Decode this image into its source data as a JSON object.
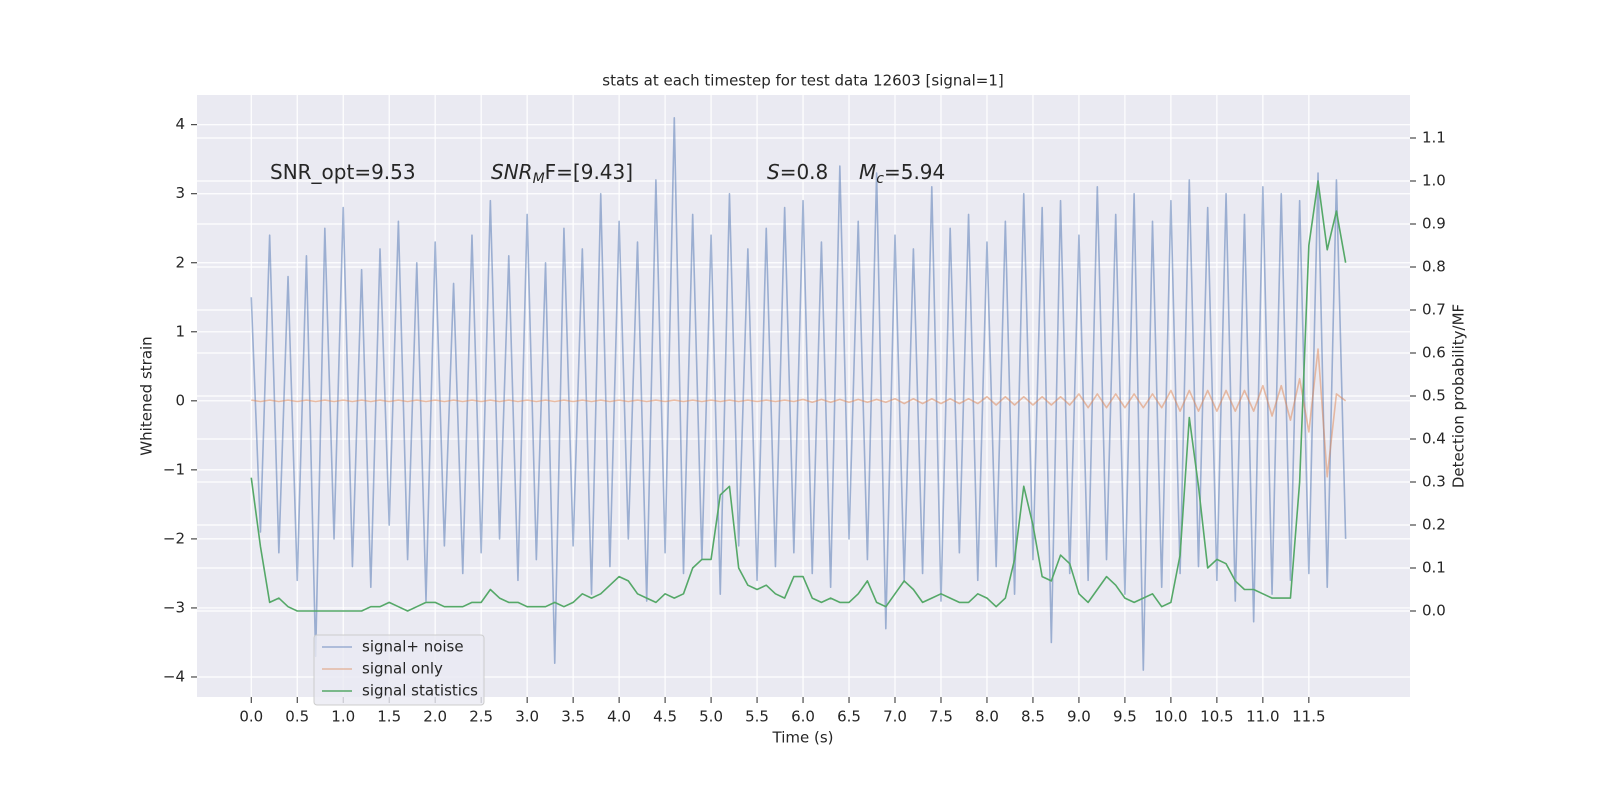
{
  "chart_data": {
    "type": "line",
    "title": "stats at each timestep for test data 12603 [signal=1]",
    "xlabel": "Time (s)",
    "ylabel": "Whitened strain",
    "y2label": "Detection probability/MF",
    "annotations": [
      {
        "text": "SNR_opt=9.53"
      },
      {
        "text": "SNR",
        "sub": "M",
        "rest": "F=[9.43]"
      },
      {
        "text": "S",
        "rest": "=0.8"
      },
      {
        "text": "M",
        "sub": "c",
        "rest": "=5.94"
      }
    ],
    "x": [
      0,
      0.1,
      0.2,
      0.3,
      0.4,
      0.5,
      0.6,
      0.7,
      0.8,
      0.9,
      1,
      1.1,
      1.2,
      1.3,
      1.4,
      1.5,
      1.6,
      1.7,
      1.8,
      1.9,
      2,
      2.1,
      2.2,
      2.3,
      2.4,
      2.5,
      2.6,
      2.7,
      2.8,
      2.9,
      3,
      3.1,
      3.2,
      3.3,
      3.4,
      3.5,
      3.6,
      3.7,
      3.8,
      3.9,
      4,
      4.1,
      4.2,
      4.3,
      4.4,
      4.5,
      4.6,
      4.7,
      4.8,
      4.9,
      5,
      5.1,
      5.2,
      5.3,
      5.4,
      5.5,
      5.6,
      5.7,
      5.8,
      5.9,
      6,
      6.1,
      6.2,
      6.3,
      6.4,
      6.5,
      6.6,
      6.7,
      6.8,
      6.9,
      7,
      7.1,
      7.2,
      7.3,
      7.4,
      7.5,
      7.6,
      7.7,
      7.8,
      7.9,
      8,
      8.1,
      8.2,
      8.3,
      8.4,
      8.5,
      8.6,
      8.7,
      8.8,
      8.9,
      9,
      9.1,
      9.2,
      9.3,
      9.4,
      9.5,
      9.6,
      9.7,
      9.8,
      9.9,
      10,
      10.1,
      10.2,
      10.3,
      10.4,
      10.5,
      10.6,
      10.7,
      10.8,
      10.9,
      11,
      11.1,
      11.2,
      11.3,
      11.4,
      11.5,
      11.6,
      11.7,
      11.8,
      11.9
    ],
    "series": [
      {
        "name": "signal+ noise",
        "color": "#4c72b0",
        "opacity": 0.5,
        "values": [
          1.5,
          -1.9,
          2.4,
          -2.2,
          1.8,
          -2.6,
          2.1,
          -3.7,
          2.5,
          -2.0,
          2.8,
          -2.4,
          1.9,
          -2.7,
          2.2,
          -1.8,
          2.6,
          -2.3,
          2.0,
          -2.9,
          2.3,
          -2.1,
          1.7,
          -2.5,
          2.4,
          -2.2,
          2.9,
          -2.0,
          2.1,
          -2.6,
          2.7,
          -2.3,
          2.0,
          -3.8,
          2.5,
          -2.1,
          2.2,
          -2.8,
          3.0,
          -2.4,
          2.6,
          -2.0,
          2.3,
          -2.9,
          3.2,
          -2.2,
          4.1,
          -2.5,
          2.7,
          -2.3,
          2.4,
          -2.8,
          3.0,
          -2.1,
          2.2,
          -2.6,
          2.5,
          -2.4,
          2.8,
          -2.2,
          2.9,
          -2.5,
          2.3,
          -2.7,
          3.4,
          -2.0,
          2.6,
          -2.3,
          3.3,
          -3.3,
          2.4,
          -2.6,
          2.2,
          -2.5,
          3.1,
          -2.9,
          2.5,
          -2.2,
          2.7,
          -2.6,
          2.3,
          -2.4,
          2.6,
          -2.8,
          3.0,
          -2.3,
          2.8,
          -3.5,
          2.9,
          -2.5,
          2.4,
          -2.6,
          3.1,
          -2.3,
          2.7,
          -2.8,
          3.0,
          -3.9,
          2.6,
          -2.7,
          2.9,
          -2.5,
          3.2,
          -2.4,
          2.8,
          -2.6,
          3.0,
          -2.9,
          2.7,
          -3.2,
          3.1,
          -2.8,
          3.0,
          -2.6,
          2.9,
          -2.5,
          3.3,
          -2.7,
          3.2,
          -2.0
        ]
      },
      {
        "name": "signal only",
        "color": "#dd8452",
        "opacity": 0.5,
        "values": [
          0.01,
          -0.01,
          0.01,
          -0.01,
          0.01,
          -0.01,
          0.01,
          -0.01,
          0.01,
          -0.01,
          0.01,
          -0.01,
          0.01,
          -0.01,
          0.01,
          -0.01,
          0.01,
          -0.01,
          0.01,
          -0.01,
          0.01,
          -0.01,
          0.01,
          -0.01,
          0.01,
          -0.01,
          0.01,
          -0.01,
          0.01,
          -0.01,
          0.01,
          -0.01,
          0.01,
          -0.01,
          0.01,
          -0.01,
          0.01,
          -0.01,
          0.01,
          -0.01,
          0.01,
          -0.01,
          0.01,
          -0.01,
          0.01,
          -0.01,
          0.01,
          -0.01,
          0.01,
          -0.01,
          0.01,
          -0.01,
          0.01,
          -0.01,
          0.01,
          -0.01,
          0.01,
          -0.01,
          0.01,
          -0.01,
          0.02,
          -0.02,
          0.02,
          -0.02,
          0.02,
          -0.02,
          0.02,
          -0.02,
          0.02,
          -0.02,
          0.03,
          -0.04,
          0.03,
          -0.04,
          0.03,
          -0.04,
          0.03,
          -0.04,
          0.03,
          -0.04,
          0.06,
          -0.06,
          0.06,
          -0.06,
          0.06,
          -0.06,
          0.06,
          -0.06,
          0.06,
          -0.06,
          0.1,
          -0.1,
          0.1,
          -0.1,
          0.1,
          -0.1,
          0.1,
          -0.1,
          0.1,
          -0.1,
          0.15,
          -0.15,
          0.15,
          -0.15,
          0.15,
          -0.15,
          0.15,
          -0.15,
          0.15,
          -0.15,
          0.22,
          -0.22,
          0.22,
          -0.28,
          0.32,
          -0.45,
          0.75,
          -1.1,
          0.1,
          0.0
        ]
      },
      {
        "name": "signal statistics",
        "color": "#55a868",
        "opacity": 1,
        "axis": "y2",
        "values": [
          0.31,
          0.15,
          0.02,
          0.03,
          0.01,
          0.0,
          0.0,
          0.0,
          0.0,
          0.0,
          0.0,
          0.0,
          0.0,
          0.01,
          0.01,
          0.02,
          0.01,
          0.0,
          0.01,
          0.02,
          0.02,
          0.01,
          0.01,
          0.01,
          0.02,
          0.02,
          0.05,
          0.03,
          0.02,
          0.02,
          0.01,
          0.01,
          0.01,
          0.02,
          0.01,
          0.02,
          0.04,
          0.03,
          0.04,
          0.06,
          0.08,
          0.07,
          0.04,
          0.03,
          0.02,
          0.04,
          0.03,
          0.04,
          0.1,
          0.12,
          0.12,
          0.27,
          0.29,
          0.1,
          0.06,
          0.05,
          0.06,
          0.04,
          0.03,
          0.08,
          0.08,
          0.03,
          0.02,
          0.03,
          0.02,
          0.02,
          0.04,
          0.07,
          0.02,
          0.01,
          0.04,
          0.07,
          0.05,
          0.02,
          0.03,
          0.04,
          0.03,
          0.02,
          0.02,
          0.04,
          0.03,
          0.01,
          0.03,
          0.12,
          0.29,
          0.2,
          0.08,
          0.07,
          0.13,
          0.11,
          0.04,
          0.02,
          0.05,
          0.08,
          0.06,
          0.03,
          0.02,
          0.03,
          0.04,
          0.01,
          0.02,
          0.13,
          0.45,
          0.29,
          0.1,
          0.12,
          0.11,
          0.07,
          0.05,
          0.05,
          0.04,
          0.03,
          0.03,
          0.03,
          0.3,
          0.85,
          1.0,
          0.84,
          0.93,
          0.81
        ]
      }
    ],
    "xlim": [
      -0.59,
      12.6
    ],
    "ylim": [
      -4.29,
      4.43
    ],
    "y2lim": [
      -0.2,
      1.2
    ],
    "xticks": [
      {
        "value": 0,
        "label": "0.0"
      },
      0.5,
      {
        "value": 1,
        "label": "1.0"
      },
      1.5,
      {
        "value": 2,
        "label": "2.0"
      },
      2.5,
      {
        "value": 3,
        "label": "3.0"
      },
      3.5,
      {
        "value": 4,
        "label": "4.0"
      },
      4.5,
      {
        "value": 5,
        "label": "5.0"
      },
      5.5,
      {
        "value": 6,
        "label": "6.0"
      },
      6.5,
      {
        "value": 7,
        "label": "7.0"
      },
      7.5,
      {
        "value": 8,
        "label": "8.0"
      },
      8.5,
      {
        "value": 9,
        "label": "9.0"
      },
      9.5,
      {
        "value": 10,
        "label": "10.0"
      },
      10.5,
      {
        "value": 11,
        "label": "11.0"
      },
      11.5
    ],
    "yticks": [
      {
        "value": -4,
        "label": "−4"
      },
      {
        "value": -3,
        "label": "−3"
      },
      {
        "value": -2,
        "label": "−2"
      },
      {
        "value": -1,
        "label": "−1"
      },
      0,
      1,
      2,
      3,
      4
    ],
    "y2ticks": [
      {
        "value": 0,
        "label": "0.0"
      },
      0.1,
      0.2,
      0.3,
      0.4,
      0.5,
      0.6,
      0.7,
      0.8,
      0.9,
      {
        "value": 1,
        "label": "1.0"
      },
      1.1
    ],
    "grid": true,
    "legend": "lower left"
  }
}
